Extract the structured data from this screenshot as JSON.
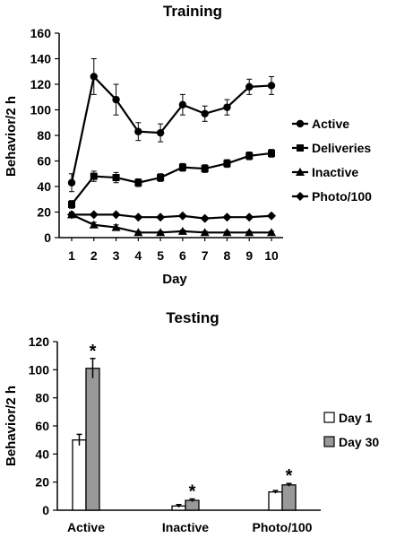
{
  "chart_data": [
    {
      "type": "line",
      "title": "Training",
      "xlabel": "Day",
      "ylabel": "Behavior/2 h",
      "x": [
        1,
        2,
        3,
        4,
        5,
        6,
        7,
        8,
        9,
        10
      ],
      "ylim": [
        0,
        160
      ],
      "yticks": [
        0,
        20,
        40,
        60,
        80,
        100,
        120,
        140,
        160
      ],
      "legend_position": "right",
      "series": [
        {
          "name": "Active",
          "marker": "circle",
          "values": [
            43,
            126,
            108,
            83,
            82,
            104,
            97,
            102,
            118,
            119
          ],
          "errors": [
            7,
            14,
            12,
            7,
            7,
            8,
            6,
            6,
            6,
            7
          ]
        },
        {
          "name": "Deliveries",
          "marker": "square",
          "values": [
            26,
            48,
            47,
            43,
            47,
            55,
            54,
            58,
            64,
            66
          ],
          "errors": [
            3,
            4,
            4,
            3,
            3,
            3,
            3,
            3,
            3,
            3
          ]
        },
        {
          "name": "Inactive",
          "marker": "triangle",
          "values": [
            18,
            10,
            8,
            4,
            4,
            5,
            4,
            4,
            4,
            4
          ],
          "errors": [
            2,
            2,
            2,
            1,
            1,
            1,
            1,
            1,
            1,
            1
          ]
        },
        {
          "name": "Photo/100",
          "marker": "diamond",
          "values": [
            18,
            18,
            18,
            16,
            16,
            17,
            15,
            16,
            16,
            17
          ],
          "errors": [
            1,
            1,
            1,
            1,
            1,
            1,
            1,
            1,
            1,
            1
          ]
        }
      ]
    },
    {
      "type": "bar",
      "title": "Testing",
      "xlabel": "",
      "ylabel": "Behavior/2 h",
      "categories": [
        "Active",
        "Inactive",
        "Photo/100"
      ],
      "ylim": [
        0,
        120
      ],
      "yticks": [
        0,
        20,
        40,
        60,
        80,
        100,
        120
      ],
      "legend_position": "right",
      "series": [
        {
          "name": "Day 1",
          "color": "#ffffff",
          "values": [
            50,
            3,
            13
          ],
          "errors": [
            4,
            1,
            1
          ]
        },
        {
          "name": "Day 30",
          "color": "#999999",
          "values": [
            101,
            7,
            18
          ],
          "errors": [
            7,
            1,
            1
          ]
        }
      ],
      "significance_marker": "*"
    }
  ]
}
